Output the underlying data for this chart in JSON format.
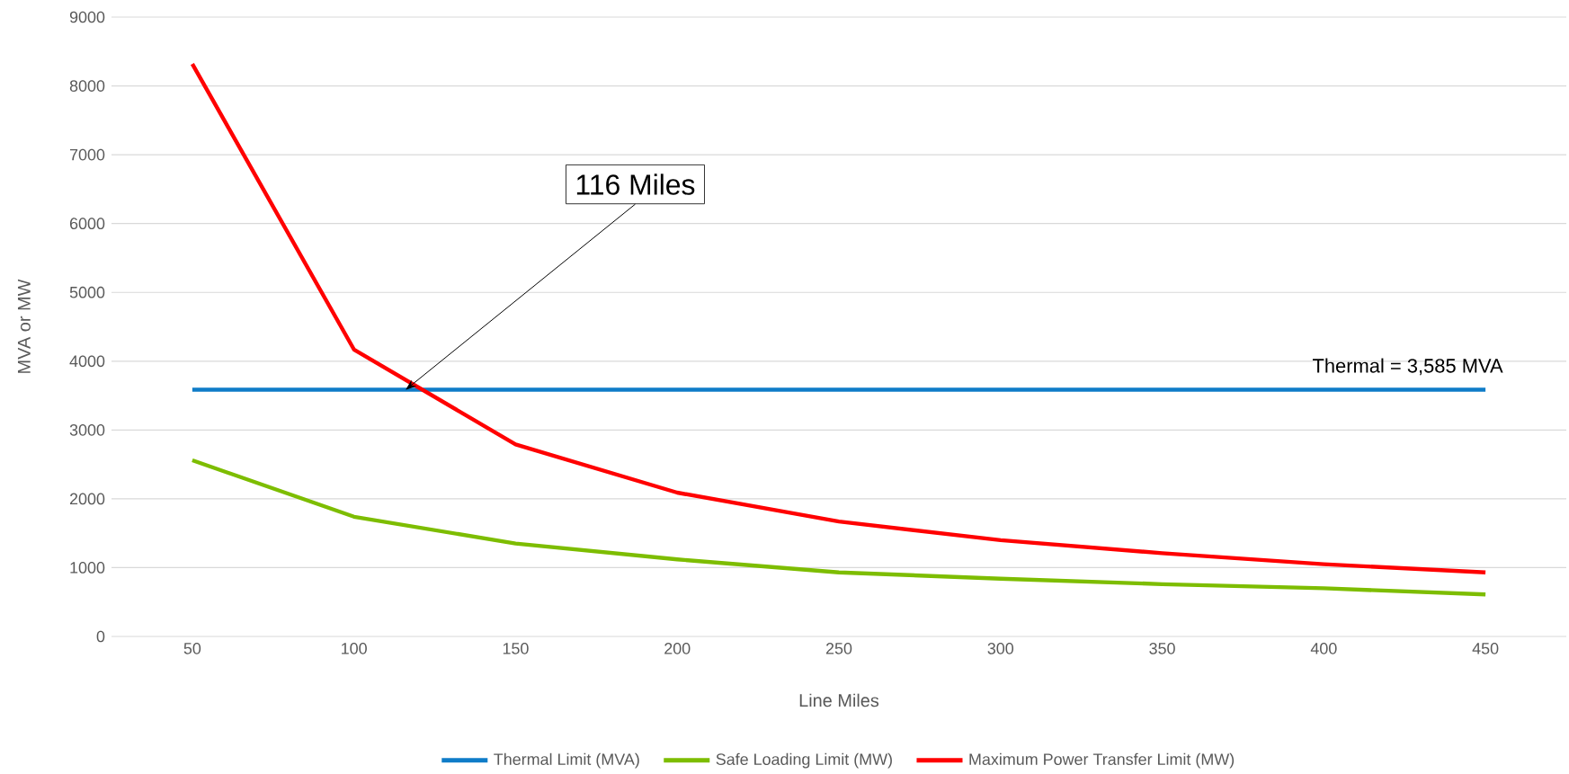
{
  "chart_data": {
    "type": "line",
    "xlabel": "Line Miles",
    "ylabel": "MVA or MW",
    "x": [
      50,
      100,
      150,
      200,
      250,
      300,
      350,
      400,
      450
    ],
    "series": [
      {
        "name": "Thermal Limit (MVA)",
        "color": "#0f7cc8",
        "values": [
          3585,
          3585,
          3585,
          3585,
          3585,
          3585,
          3585,
          3585,
          3585
        ]
      },
      {
        "name": "Safe Loading Limit (MW)",
        "color": "#7dbd00",
        "values": [
          2560,
          1740,
          1350,
          1120,
          930,
          840,
          760,
          700,
          610
        ]
      },
      {
        "name": "Maximum Power Transfer Limit (MW)",
        "color": "#ff0000",
        "values": [
          8320,
          4170,
          2790,
          2090,
          1670,
          1400,
          1210,
          1050,
          930
        ]
      }
    ],
    "xlim": [
      25,
      475
    ],
    "ylim": [
      0,
      9000
    ],
    "xticks": [
      50,
      100,
      150,
      200,
      250,
      300,
      350,
      400,
      450
    ],
    "yticks": [
      0,
      1000,
      2000,
      3000,
      4000,
      5000,
      6000,
      7000,
      8000,
      9000
    ],
    "grid": "y",
    "legend": "bottom",
    "annotations": [
      {
        "text": "116 Miles",
        "x": 116,
        "y": 3585
      },
      {
        "text": "Thermal = 3,585 MVA",
        "x": 450,
        "y": 3585
      }
    ]
  }
}
